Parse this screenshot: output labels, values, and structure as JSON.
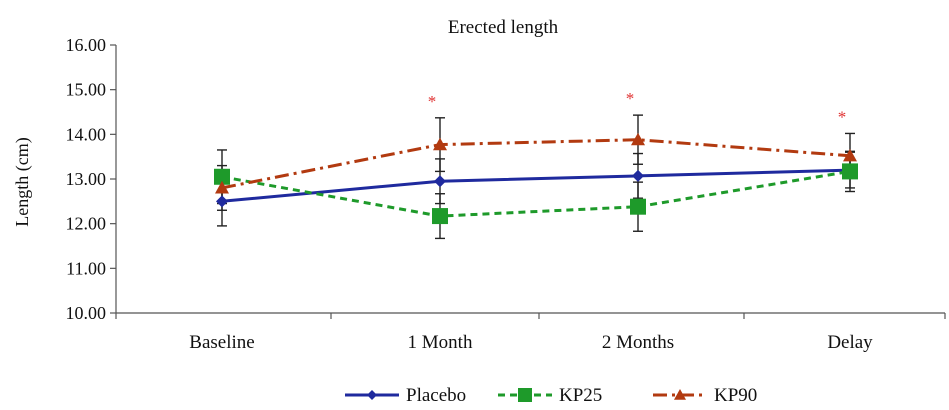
{
  "chart_data": {
    "type": "line",
    "title": "Erected length",
    "xlabel": "",
    "ylabel": "Length (cm)",
    "categories": [
      "Baseline",
      "1 Month",
      "2 Months",
      "Delay"
    ],
    "ylim": [
      10.0,
      16.0
    ],
    "yticks": [
      "10.00",
      "11.00",
      "12.00",
      "13.00",
      "14.00",
      "15.00",
      "16.00"
    ],
    "grid": false,
    "legend_position": "bottom",
    "series": [
      {
        "name": "Placebo",
        "color": "#1f2a9e",
        "dash": "solid",
        "marker": "diamond",
        "values": [
          12.5,
          12.95,
          13.07,
          13.2
        ],
        "error": [
          0.55,
          0.5,
          0.5,
          0.4
        ]
      },
      {
        "name": "KP25",
        "color": "#1e9a2a",
        "dash": "dashed",
        "marker": "square",
        "values": [
          13.05,
          12.17,
          12.38,
          13.17
        ],
        "error": [
          0.6,
          0.5,
          0.55,
          0.45
        ]
      },
      {
        "name": "KP90",
        "color": "#b23a10",
        "dash": "dashdot",
        "marker": "triangle",
        "values": [
          12.8,
          13.77,
          13.88,
          13.52
        ],
        "error": [
          0.5,
          0.6,
          0.55,
          0.5
        ]
      }
    ],
    "annotations": [
      {
        "category": "1 Month",
        "text": "*"
      },
      {
        "category": "2 Months",
        "text": "*"
      },
      {
        "category": "Delay",
        "text": "*"
      }
    ]
  }
}
